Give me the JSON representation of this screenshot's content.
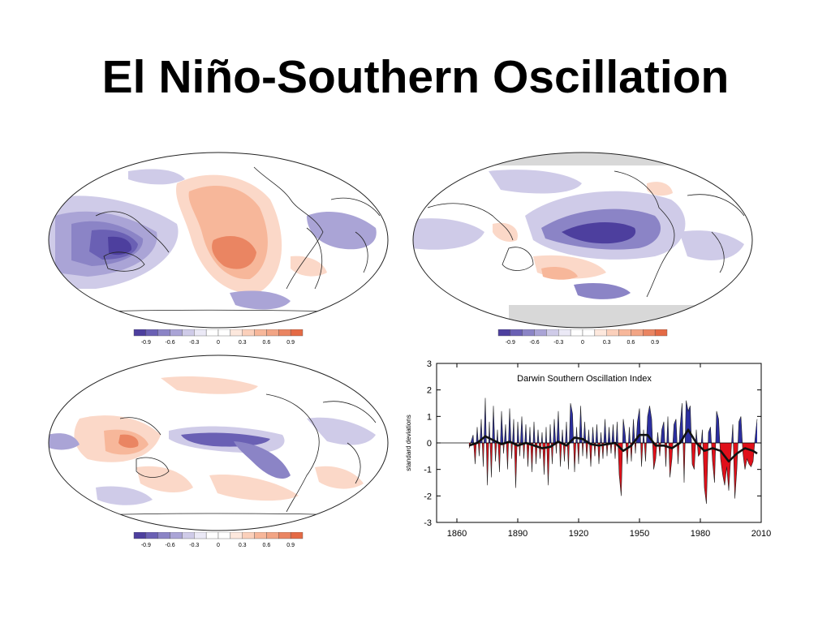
{
  "slide": {
    "title": "El Niño-Southern Oscillation"
  },
  "colors": {
    "negative_strong": "#4d3f9e",
    "negative_mid": "#8b84c6",
    "negative_light": "#cfcbe8",
    "positive_light": "#fbd8c8",
    "positive_mid": "#f2a585",
    "positive_strong": "#e46a45",
    "index_positive": "#2b2ea0",
    "index_negative": "#e0101a",
    "land_gray": "#d8d8d8"
  },
  "colorbar": {
    "labels": [
      "-0.9",
      "-0.6",
      "-0.3",
      "0",
      "0.3",
      "0.6",
      "0.9"
    ],
    "swatches": [
      "#4d3f9e",
      "#6a60b4",
      "#8b84c6",
      "#aaa4d6",
      "#cfcbe8",
      "#ebe9f6",
      "#ffffff",
      "#ffffff",
      "#fde8dd",
      "#fbd0bb",
      "#f7b79a",
      "#f2a585",
      "#ea8562",
      "#e46a45"
    ]
  },
  "maps": [
    {
      "name": "map-top-left"
    },
    {
      "name": "map-top-right"
    },
    {
      "name": "map-bottom-left"
    }
  ],
  "chart_data": {
    "type": "area",
    "title": "Darwin Southern Oscillation Index",
    "xlabel": "",
    "ylabel": "standard deviations",
    "xlim": [
      1850,
      2010
    ],
    "ylim": [
      -3,
      3
    ],
    "xticks": [
      1860,
      1890,
      1920,
      1950,
      1980,
      2010
    ],
    "yticks": [
      -3,
      -2,
      -1,
      0,
      1,
      2,
      3
    ],
    "series": [
      {
        "values": [
          [
            1866,
            -0.2
          ],
          [
            1868,
            0.3
          ],
          [
            1869,
            -0.8
          ],
          [
            1870,
            0.6
          ],
          [
            1871,
            -0.5
          ],
          [
            1872,
            0.9
          ],
          [
            1873,
            -0.9
          ],
          [
            1874,
            1.7
          ],
          [
            1875,
            -1.6
          ],
          [
            1876,
            0.8
          ],
          [
            1877,
            -1.3
          ],
          [
            1878,
            1.4
          ],
          [
            1879,
            -0.7
          ],
          [
            1880,
            0.5
          ],
          [
            1881,
            -1.1
          ],
          [
            1882,
            1.2
          ],
          [
            1883,
            -0.4
          ],
          [
            1884,
            0.7
          ],
          [
            1885,
            -1.0
          ],
          [
            1886,
            1.3
          ],
          [
            1887,
            -0.6
          ],
          [
            1888,
            0.9
          ],
          [
            1889,
            -1.7
          ],
          [
            1890,
            0.8
          ],
          [
            1891,
            -0.5
          ],
          [
            1892,
            1.0
          ],
          [
            1893,
            -0.6
          ],
          [
            1894,
            0.7
          ],
          [
            1895,
            -0.9
          ],
          [
            1896,
            0.6
          ],
          [
            1897,
            -1.1
          ],
          [
            1898,
            0.8
          ],
          [
            1899,
            -0.8
          ],
          [
            1900,
            0.5
          ],
          [
            1901,
            -0.6
          ],
          [
            1902,
            0.4
          ],
          [
            1903,
            -1.2
          ],
          [
            1904,
            0.6
          ],
          [
            1905,
            -1.6
          ],
          [
            1906,
            0.7
          ],
          [
            1907,
            -0.8
          ],
          [
            1908,
            0.9
          ],
          [
            1909,
            -0.4
          ],
          [
            1910,
            1.2
          ],
          [
            1911,
            -0.9
          ],
          [
            1912,
            0.5
          ],
          [
            1913,
            -0.7
          ],
          [
            1914,
            0.8
          ],
          [
            1915,
            -1.0
          ],
          [
            1916,
            1.5
          ],
          [
            1917,
            1.1
          ],
          [
            1918,
            -1.1
          ],
          [
            1919,
            0.6
          ],
          [
            1920,
            -0.8
          ],
          [
            1921,
            1.4
          ],
          [
            1922,
            -0.5
          ],
          [
            1923,
            0.8
          ],
          [
            1924,
            -0.6
          ],
          [
            1925,
            0.5
          ],
          [
            1926,
            -0.9
          ],
          [
            1927,
            0.6
          ],
          [
            1928,
            -0.5
          ],
          [
            1929,
            0.7
          ],
          [
            1930,
            -0.8
          ],
          [
            1931,
            0.4
          ],
          [
            1932,
            -0.6
          ],
          [
            1933,
            0.9
          ],
          [
            1934,
            -0.5
          ],
          [
            1935,
            0.6
          ],
          [
            1936,
            -0.4
          ],
          [
            1937,
            0.7
          ],
          [
            1938,
            -0.6
          ],
          [
            1939,
            0.8
          ],
          [
            1940,
            -1.2
          ],
          [
            1941,
            -2.0
          ],
          [
            1942,
            0.9
          ],
          [
            1943,
            0.3
          ],
          [
            1944,
            -0.8
          ],
          [
            1945,
            0.6
          ],
          [
            1946,
            -0.7
          ],
          [
            1947,
            0.9
          ],
          [
            1948,
            -0.4
          ],
          [
            1949,
            0.8
          ],
          [
            1950,
            1.3
          ],
          [
            1951,
            -0.9
          ],
          [
            1952,
            0.5
          ],
          [
            1953,
            -0.7
          ],
          [
            1954,
            1.0
          ],
          [
            1955,
            1.4
          ],
          [
            1956,
            0.9
          ],
          [
            1957,
            -1.0
          ],
          [
            1958,
            -0.6
          ],
          [
            1959,
            0.4
          ],
          [
            1960,
            -0.5
          ],
          [
            1961,
            0.5
          ],
          [
            1962,
            0.8
          ],
          [
            1963,
            -0.9
          ],
          [
            1964,
            1.0
          ],
          [
            1965,
            -1.3
          ],
          [
            1966,
            -0.6
          ],
          [
            1967,
            0.7
          ],
          [
            1968,
            0.9
          ],
          [
            1969,
            -0.8
          ],
          [
            1970,
            0.6
          ],
          [
            1971,
            1.5
          ],
          [
            1972,
            -1.5
          ],
          [
            1973,
            1.6
          ],
          [
            1974,
            1.2
          ],
          [
            1975,
            1.4
          ],
          [
            1976,
            -0.8
          ],
          [
            1977,
            -1.0
          ],
          [
            1978,
            0.5
          ],
          [
            1979,
            -0.5
          ],
          [
            1980,
            -0.4
          ],
          [
            1981,
            0.5
          ],
          [
            1982,
            -1.7
          ],
          [
            1983,
            -2.3
          ],
          [
            1984,
            0.4
          ],
          [
            1985,
            0.6
          ],
          [
            1986,
            -0.7
          ],
          [
            1987,
            -1.5
          ],
          [
            1988,
            1.2
          ],
          [
            1989,
            0.9
          ],
          [
            1990,
            -0.6
          ],
          [
            1991,
            -1.2
          ],
          [
            1992,
            -1.6
          ],
          [
            1993,
            -0.9
          ],
          [
            1994,
            -1.8
          ],
          [
            1995,
            -0.5
          ],
          [
            1996,
            0.7
          ],
          [
            1997,
            -2.1
          ],
          [
            1998,
            -1.0
          ],
          [
            1999,
            0.8
          ],
          [
            2000,
            1.0
          ],
          [
            2001,
            -0.4
          ],
          [
            2002,
            -1.0
          ],
          [
            2003,
            -0.6
          ],
          [
            2004,
            -0.8
          ],
          [
            2005,
            -0.9
          ],
          [
            2006,
            -0.7
          ],
          [
            2007,
            0.2
          ],
          [
            2008,
            0.9
          ]
        ]
      },
      {
        "values": [
          [
            1866,
            -0.1
          ],
          [
            1870,
            0.0
          ],
          [
            1874,
            0.25
          ],
          [
            1878,
            0.1
          ],
          [
            1882,
            -0.05
          ],
          [
            1886,
            0.05
          ],
          [
            1890,
            -0.1
          ],
          [
            1894,
            0.0
          ],
          [
            1898,
            -0.1
          ],
          [
            1902,
            -0.2
          ],
          [
            1906,
            -0.15
          ],
          [
            1910,
            0.05
          ],
          [
            1914,
            -0.1
          ],
          [
            1918,
            0.2
          ],
          [
            1922,
            0.15
          ],
          [
            1926,
            -0.05
          ],
          [
            1930,
            -0.1
          ],
          [
            1934,
            -0.05
          ],
          [
            1938,
            0.0
          ],
          [
            1942,
            -0.3
          ],
          [
            1946,
            -0.1
          ],
          [
            1950,
            0.3
          ],
          [
            1954,
            0.3
          ],
          [
            1958,
            -0.1
          ],
          [
            1962,
            -0.1
          ],
          [
            1966,
            -0.2
          ],
          [
            1970,
            0.0
          ],
          [
            1974,
            0.5
          ],
          [
            1978,
            0.0
          ],
          [
            1982,
            -0.3
          ],
          [
            1986,
            -0.2
          ],
          [
            1990,
            -0.3
          ],
          [
            1994,
            -0.7
          ],
          [
            1998,
            -0.4
          ],
          [
            2002,
            -0.2
          ],
          [
            2006,
            -0.3
          ],
          [
            2008,
            -0.4
          ]
        ]
      }
    ]
  }
}
